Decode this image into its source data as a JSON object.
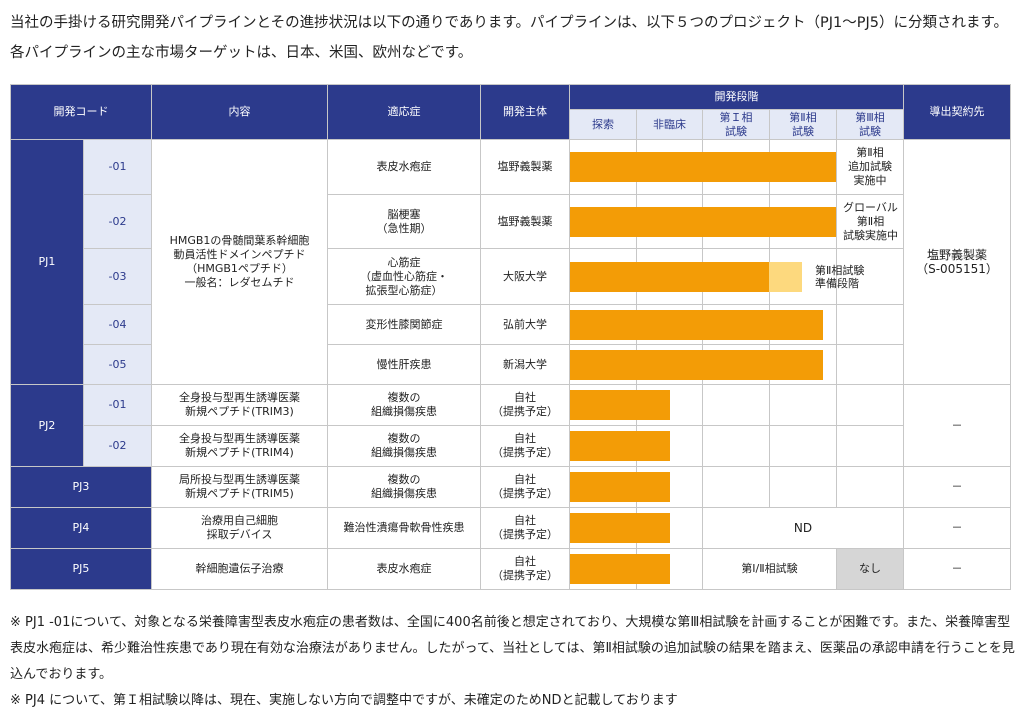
{
  "intro": "当社の手掛ける研究開発パイプラインとその進捗状況は以下の通りであります。パイプラインは、以下５つのプロジェクト（PJ1〜PJ5）に分類されます。各パイプラインの主な市場ターゲットは、日本、米国、欧州などです。",
  "headers": {
    "code": "開発コード",
    "content": "内容",
    "indication": "適応症",
    "developer": "開発主体",
    "stage": "開発段階",
    "licensee": "導出契約先",
    "phases": [
      "探索",
      "非臨床",
      "第Ｉ相\n試験",
      "第Ⅱ相\n試験",
      "第Ⅲ相\n試験"
    ]
  },
  "projects": {
    "pj1": {
      "label": "PJ1",
      "content": "HMGB1の骨髄間葉系幹細胞\n動員活性ドメインペプチド\n（HMGB1ペプチド）\n一般名：レダセムチド",
      "licensee": "塩野義製薬\n（S-005151）",
      "rows": [
        {
          "code": "-01",
          "indication": "表皮水疱症",
          "developer": "塩野義製薬",
          "progress": 4,
          "note": "第Ⅱ相\n追加試験\n実施中"
        },
        {
          "code": "-02",
          "indication": "脳梗塞\n（急性期）",
          "developer": "塩野義製薬",
          "progress": 4,
          "note": "グローバル\n第Ⅱ相\n試験実施中"
        },
        {
          "code": "-03",
          "indication": "心筋症\n（虚血性心筋症・\n拡張型心筋症）",
          "developer": "大阪大学",
          "progress": 3,
          "progress_planned": 0.5,
          "note": "第Ⅱ相試験\n準備段階"
        },
        {
          "code": "-04",
          "indication": "変形性膝関節症",
          "developer": "弘前大学",
          "progress": 3.8,
          "note": ""
        },
        {
          "code": "-05",
          "indication": "慢性肝疾患",
          "developer": "新潟大学",
          "progress": 3.8,
          "note": ""
        }
      ]
    },
    "pj2": {
      "label": "PJ2",
      "licensee": "－",
      "rows": [
        {
          "code": "-01",
          "content": "全身投与型再生誘導医薬\n新規ペプチド(TRIM3)",
          "indication": "複数の\n組織損傷疾患",
          "developer": "自社\n（提携予定）",
          "progress": 1.5
        },
        {
          "code": "-02",
          "content": "全身投与型再生誘導医薬\n新規ペプチド(TRIM4)",
          "indication": "複数の\n組織損傷疾患",
          "developer": "自社\n（提携予定）",
          "progress": 1.5
        }
      ]
    },
    "pj3": {
      "label": "PJ3",
      "content": "局所投与型再生誘導医薬\n新規ペプチド(TRIM5)",
      "indication": "複数の\n組織損傷疾患",
      "developer": "自社\n（提携予定）",
      "progress": 1.5,
      "licensee": "－"
    },
    "pj4": {
      "label": "PJ4",
      "content": "治療用自己細胞\n採取デバイス",
      "indication": "難治性潰瘍骨軟骨性疾患",
      "developer": "自社\n（提携予定）",
      "progress": 1.5,
      "nd": "ND",
      "licensee": "－"
    },
    "pj5": {
      "label": "PJ5",
      "content": "幹細胞遺伝子治療",
      "indication": "表皮水疱症",
      "developer": "自社\n（提携予定）",
      "progress": 1.5,
      "trial": "第Ⅰ/Ⅱ相試験",
      "none": "なし",
      "licensee": "－"
    }
  },
  "footnotes": [
    "※ PJ1 -01について、対象となる栄養障害型表皮水疱症の患者数は、全国に400名前後と想定されており、大規模な第Ⅲ相試験を計画することが困難です。また、栄養障害型表皮水疱症は、希少難治性疾患であり現在有効な治療法がありません。したがって、当社としては、第Ⅱ相試験の追加試験の結果を踏まえ、医薬品の承認申請を行うことを見込んでおります。",
    "※ PJ4 について、第Ｉ相試験以降は、現在、実施しない方向で調整中ですが、未確定のためNDと記載しております"
  ],
  "colors": {
    "navy": "#2c3a8c",
    "light_blue": "#e4e9f6",
    "bar": "#f39c06",
    "bar_planned": "#fdd97e",
    "gray": "#d6d6d6"
  }
}
